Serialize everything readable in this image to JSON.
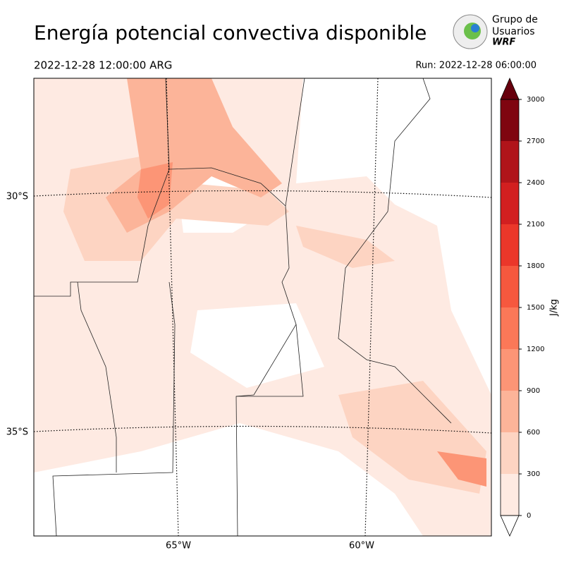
{
  "header": {
    "title": "Energía potencial convectiva disponible",
    "valid_time": "2022-12-28 12:00:00 ARG",
    "run": "Run: 2022-12-28 06:00:00"
  },
  "logo": {
    "lines": [
      "Grupo de",
      "Usuarios",
      "WRF"
    ]
  },
  "map": {
    "lat_labels": [
      "30°S",
      "35°S"
    ],
    "lon_labels": [
      "65°W",
      "60°W"
    ]
  },
  "colorbar": {
    "label": "J/kg",
    "lim": [
      0,
      3000
    ],
    "ticks": [
      0,
      300,
      600,
      900,
      1200,
      1500,
      1800,
      2100,
      2400,
      2700,
      3000
    ],
    "colors": [
      "#feeae2",
      "#fdd4c2",
      "#fcb499",
      "#fc9576",
      "#fb7858",
      "#f6583e",
      "#eb372a",
      "#d21f20",
      "#b0141a",
      "#7f0510"
    ],
    "over_color": "#67000d",
    "under_color": "#ffffff"
  }
}
